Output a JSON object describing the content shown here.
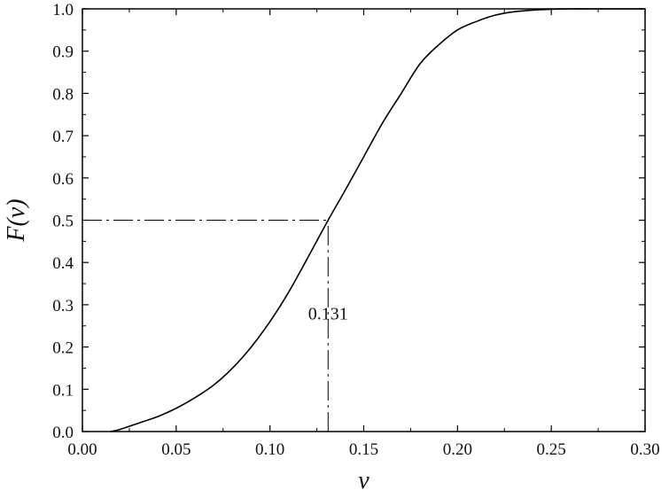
{
  "chart_data": {
    "type": "line",
    "xlabel": "v",
    "ylabel": "F(v)",
    "xlim": [
      0.0,
      0.3
    ],
    "ylim": [
      0.0,
      1.0
    ],
    "x_ticks": [
      "0.00",
      "0.05",
      "0.10",
      "0.15",
      "0.20",
      "0.25",
      "0.30"
    ],
    "y_ticks": [
      "0.0",
      "0.1",
      "0.2",
      "0.3",
      "0.4",
      "0.5",
      "0.6",
      "0.7",
      "0.8",
      "0.9",
      "1.0"
    ],
    "grid": false,
    "series": [
      {
        "x": [
          0.015,
          0.02,
          0.03,
          0.04,
          0.05,
          0.06,
          0.07,
          0.08,
          0.09,
          0.1,
          0.11,
          0.12,
          0.131,
          0.14,
          0.15,
          0.16,
          0.17,
          0.18,
          0.19,
          0.2,
          0.21,
          0.22,
          0.23,
          0.24,
          0.25,
          0.26,
          0.27,
          0.28,
          0.29,
          0.3
        ],
        "y": [
          0.0,
          0.005,
          0.02,
          0.035,
          0.055,
          0.08,
          0.11,
          0.15,
          0.2,
          0.26,
          0.33,
          0.41,
          0.5,
          0.57,
          0.65,
          0.73,
          0.8,
          0.87,
          0.915,
          0.95,
          0.97,
          0.985,
          0.993,
          0.997,
          0.999,
          1.0,
          1.0,
          1.0,
          1.0,
          1.0
        ]
      }
    ],
    "reference_lines": [
      {
        "orientation": "horizontal",
        "value": 1.0,
        "x_from": 0.0,
        "x_to": 0.3,
        "style": "dash-dot"
      },
      {
        "orientation": "horizontal",
        "value": 0.5,
        "x_from": 0.0,
        "x_to": 0.131,
        "style": "dash-dot"
      },
      {
        "orientation": "vertical",
        "value": 0.131,
        "y_from": 0.0,
        "y_to": 0.5,
        "style": "dash-dot"
      }
    ],
    "annotations": [
      {
        "text": "0.131",
        "x": 0.131,
        "y": 0.28
      }
    ],
    "colors": {
      "line": "#000000",
      "axis": "#000000"
    }
  }
}
